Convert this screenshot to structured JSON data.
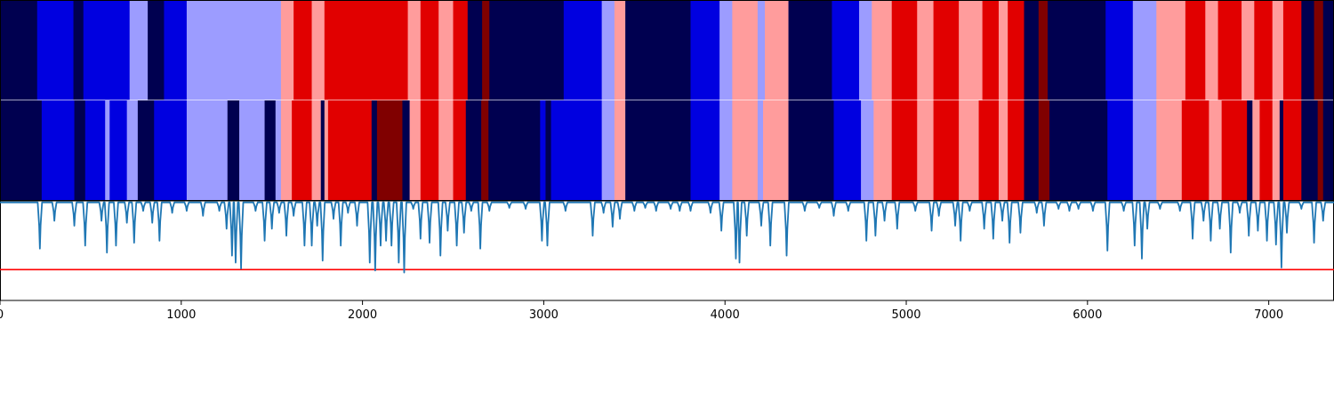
{
  "chart_data": {
    "type": "heatmap",
    "x_range": [
      0,
      7360
    ],
    "x_ticks": [
      "0",
      "1000",
      "2000",
      "3000",
      "4000",
      "5000",
      "6000",
      "7000"
    ],
    "x_tick_values": [
      0,
      1000,
      2000,
      3000,
      4000,
      5000,
      6000,
      7000
    ],
    "palette": {
      "0": "#000050",
      "1": "#0000e0",
      "2": "#9c9cff",
      "3": "#ff9c9c",
      "4": "#e10000",
      "5": "#800000"
    },
    "top_track": [
      [
        0,
        205,
        0
      ],
      [
        205,
        405,
        1
      ],
      [
        405,
        460,
        0
      ],
      [
        460,
        715,
        1
      ],
      [
        715,
        815,
        2
      ],
      [
        815,
        905,
        0
      ],
      [
        905,
        1030,
        1
      ],
      [
        1030,
        1550,
        2
      ],
      [
        1550,
        1620,
        3
      ],
      [
        1620,
        1720,
        4
      ],
      [
        1720,
        1790,
        3
      ],
      [
        1790,
        2250,
        4
      ],
      [
        2250,
        2320,
        3
      ],
      [
        2320,
        2420,
        4
      ],
      [
        2420,
        2500,
        3
      ],
      [
        2500,
        2580,
        4
      ],
      [
        2580,
        2660,
        0
      ],
      [
        2660,
        2700,
        5
      ],
      [
        2700,
        3110,
        0
      ],
      [
        3110,
        3320,
        1
      ],
      [
        3320,
        3390,
        2
      ],
      [
        3390,
        3450,
        3
      ],
      [
        3450,
        3810,
        0
      ],
      [
        3810,
        3970,
        1
      ],
      [
        3970,
        4040,
        2
      ],
      [
        4040,
        4100,
        3
      ],
      [
        4100,
        4180,
        3
      ],
      [
        4180,
        4220,
        2
      ],
      [
        4220,
        4350,
        3
      ],
      [
        4350,
        4590,
        0
      ],
      [
        4590,
        4740,
        1
      ],
      [
        4740,
        4810,
        2
      ],
      [
        4810,
        4920,
        3
      ],
      [
        4920,
        5060,
        4
      ],
      [
        5060,
        5150,
        3
      ],
      [
        5150,
        5290,
        4
      ],
      [
        5290,
        5420,
        3
      ],
      [
        5420,
        5510,
        4
      ],
      [
        5510,
        5560,
        3
      ],
      [
        5560,
        5650,
        4
      ],
      [
        5650,
        5730,
        0
      ],
      [
        5730,
        5780,
        5
      ],
      [
        5780,
        6100,
        0
      ],
      [
        6100,
        6250,
        1
      ],
      [
        6250,
        6380,
        2
      ],
      [
        6380,
        6540,
        3
      ],
      [
        6540,
        6650,
        4
      ],
      [
        6650,
        6720,
        3
      ],
      [
        6720,
        6850,
        4
      ],
      [
        6850,
        6920,
        3
      ],
      [
        6920,
        7020,
        4
      ],
      [
        7020,
        7080,
        3
      ],
      [
        7080,
        7180,
        4
      ],
      [
        7180,
        7250,
        0
      ],
      [
        7250,
        7300,
        5
      ],
      [
        7300,
        7360,
        0
      ]
    ],
    "bottom_track": [
      [
        0,
        230,
        0
      ],
      [
        230,
        410,
        1
      ],
      [
        410,
        470,
        0
      ],
      [
        470,
        580,
        1
      ],
      [
        580,
        605,
        2
      ],
      [
        605,
        700,
        1
      ],
      [
        700,
        760,
        2
      ],
      [
        760,
        850,
        0
      ],
      [
        850,
        1030,
        1
      ],
      [
        1030,
        1255,
        2
      ],
      [
        1255,
        1320,
        0
      ],
      [
        1320,
        1460,
        2
      ],
      [
        1460,
        1520,
        0
      ],
      [
        1520,
        1550,
        2
      ],
      [
        1550,
        1610,
        3
      ],
      [
        1610,
        1720,
        4
      ],
      [
        1720,
        1770,
        3
      ],
      [
        1770,
        1790,
        0
      ],
      [
        1790,
        1810,
        3
      ],
      [
        1810,
        2050,
        4
      ],
      [
        2050,
        2080,
        0
      ],
      [
        2080,
        2220,
        5
      ],
      [
        2220,
        2260,
        0
      ],
      [
        2260,
        2320,
        3
      ],
      [
        2320,
        2420,
        4
      ],
      [
        2420,
        2500,
        3
      ],
      [
        2500,
        2570,
        4
      ],
      [
        2570,
        2655,
        0
      ],
      [
        2655,
        2695,
        5
      ],
      [
        2695,
        2980,
        0
      ],
      [
        2980,
        3010,
        1
      ],
      [
        3010,
        3040,
        0
      ],
      [
        3040,
        3320,
        1
      ],
      [
        3320,
        3390,
        2
      ],
      [
        3390,
        3450,
        3
      ],
      [
        3450,
        3810,
        0
      ],
      [
        3810,
        3970,
        1
      ],
      [
        3970,
        4040,
        2
      ],
      [
        4040,
        4100,
        3
      ],
      [
        4100,
        4180,
        3
      ],
      [
        4180,
        4210,
        2
      ],
      [
        4210,
        4350,
        3
      ],
      [
        4350,
        4600,
        0
      ],
      [
        4600,
        4750,
        1
      ],
      [
        4750,
        4820,
        2
      ],
      [
        4820,
        4920,
        3
      ],
      [
        4920,
        5060,
        4
      ],
      [
        5060,
        5150,
        3
      ],
      [
        5150,
        5290,
        4
      ],
      [
        5290,
        5400,
        3
      ],
      [
        5400,
        5510,
        4
      ],
      [
        5510,
        5560,
        3
      ],
      [
        5560,
        5650,
        4
      ],
      [
        5650,
        5730,
        0
      ],
      [
        5730,
        5790,
        5
      ],
      [
        5790,
        6110,
        0
      ],
      [
        6110,
        6250,
        1
      ],
      [
        6250,
        6310,
        2
      ],
      [
        6310,
        6380,
        2
      ],
      [
        6380,
        6520,
        3
      ],
      [
        6520,
        6670,
        4
      ],
      [
        6670,
        6740,
        3
      ],
      [
        6740,
        6880,
        4
      ],
      [
        6880,
        6910,
        0
      ],
      [
        6910,
        6950,
        3
      ],
      [
        6950,
        7020,
        4
      ],
      [
        7020,
        7060,
        3
      ],
      [
        7060,
        7080,
        0
      ],
      [
        7080,
        7180,
        4
      ],
      [
        7180,
        7270,
        0
      ],
      [
        7270,
        7300,
        5
      ],
      [
        7300,
        7360,
        0
      ]
    ],
    "line_series": {
      "color": "#1f77b4",
      "y_range": [
        0,
        1
      ],
      "baseline": 0.985,
      "dips": [
        [
          220,
          0.52
        ],
        [
          300,
          0.8
        ],
        [
          410,
          0.75
        ],
        [
          470,
          0.55
        ],
        [
          560,
          0.8
        ],
        [
          590,
          0.48
        ],
        [
          640,
          0.55
        ],
        [
          700,
          0.78
        ],
        [
          740,
          0.58
        ],
        [
          790,
          0.9
        ],
        [
          840,
          0.78
        ],
        [
          880,
          0.6
        ],
        [
          950,
          0.88
        ],
        [
          1030,
          0.9
        ],
        [
          1120,
          0.85
        ],
        [
          1210,
          0.9
        ],
        [
          1250,
          0.72
        ],
        [
          1280,
          0.45
        ],
        [
          1300,
          0.38
        ],
        [
          1330,
          0.32
        ],
        [
          1410,
          0.9
        ],
        [
          1460,
          0.6
        ],
        [
          1500,
          0.72
        ],
        [
          1540,
          0.88
        ],
        [
          1580,
          0.65
        ],
        [
          1620,
          0.85
        ],
        [
          1680,
          0.55
        ],
        [
          1720,
          0.55
        ],
        [
          1750,
          0.75
        ],
        [
          1780,
          0.4
        ],
        [
          1840,
          0.82
        ],
        [
          1880,
          0.55
        ],
        [
          1920,
          0.88
        ],
        [
          1970,
          0.75
        ],
        [
          2040,
          0.38
        ],
        [
          2070,
          0.3
        ],
        [
          2100,
          0.55
        ],
        [
          2130,
          0.6
        ],
        [
          2160,
          0.55
        ],
        [
          2200,
          0.38
        ],
        [
          2230,
          0.28
        ],
        [
          2280,
          0.92
        ],
        [
          2320,
          0.62
        ],
        [
          2370,
          0.58
        ],
        [
          2430,
          0.45
        ],
        [
          2470,
          0.7
        ],
        [
          2520,
          0.55
        ],
        [
          2560,
          0.68
        ],
        [
          2600,
          0.9
        ],
        [
          2650,
          0.52
        ],
        [
          2700,
          0.9
        ],
        [
          2810,
          0.93
        ],
        [
          2900,
          0.92
        ],
        [
          2990,
          0.6
        ],
        [
          3020,
          0.55
        ],
        [
          3120,
          0.9
        ],
        [
          3270,
          0.65
        ],
        [
          3330,
          0.88
        ],
        [
          3380,
          0.74
        ],
        [
          3420,
          0.82
        ],
        [
          3500,
          0.9
        ],
        [
          3560,
          0.93
        ],
        [
          3620,
          0.9
        ],
        [
          3700,
          0.92
        ],
        [
          3750,
          0.9
        ],
        [
          3810,
          0.9
        ],
        [
          3920,
          0.88
        ],
        [
          3980,
          0.7
        ],
        [
          4060,
          0.42
        ],
        [
          4080,
          0.38
        ],
        [
          4120,
          0.65
        ],
        [
          4200,
          0.75
        ],
        [
          4250,
          0.55
        ],
        [
          4340,
          0.45
        ],
        [
          4440,
          0.9
        ],
        [
          4520,
          0.93
        ],
        [
          4600,
          0.85
        ],
        [
          4680,
          0.9
        ],
        [
          4780,
          0.6
        ],
        [
          4830,
          0.65
        ],
        [
          4880,
          0.8
        ],
        [
          4950,
          0.72
        ],
        [
          5050,
          0.9
        ],
        [
          5140,
          0.7
        ],
        [
          5180,
          0.85
        ],
        [
          5270,
          0.75
        ],
        [
          5300,
          0.6
        ],
        [
          5350,
          0.9
        ],
        [
          5430,
          0.72
        ],
        [
          5480,
          0.62
        ],
        [
          5530,
          0.8
        ],
        [
          5570,
          0.58
        ],
        [
          5630,
          0.68
        ],
        [
          5720,
          0.88
        ],
        [
          5760,
          0.75
        ],
        [
          5840,
          0.92
        ],
        [
          5900,
          0.9
        ],
        [
          5950,
          0.92
        ],
        [
          6030,
          0.9
        ],
        [
          6110,
          0.5
        ],
        [
          6200,
          0.9
        ],
        [
          6260,
          0.55
        ],
        [
          6300,
          0.42
        ],
        [
          6330,
          0.72
        ],
        [
          6400,
          0.92
        ],
        [
          6510,
          0.9
        ],
        [
          6580,
          0.62
        ],
        [
          6640,
          0.8
        ],
        [
          6680,
          0.6
        ],
        [
          6730,
          0.72
        ],
        [
          6790,
          0.48
        ],
        [
          6840,
          0.88
        ],
        [
          6890,
          0.65
        ],
        [
          6940,
          0.7
        ],
        [
          6990,
          0.6
        ],
        [
          7040,
          0.56
        ],
        [
          7070,
          0.33
        ],
        [
          7100,
          0.68
        ],
        [
          7180,
          0.92
        ],
        [
          7250,
          0.58
        ],
        [
          7300,
          0.8
        ]
      ]
    },
    "threshold": {
      "value": 0.31,
      "color": "#ff0000"
    },
    "grid": false,
    "legend": "none"
  }
}
